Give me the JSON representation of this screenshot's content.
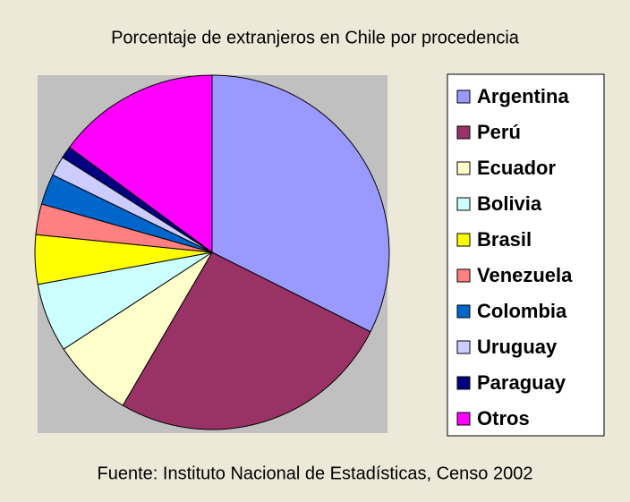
{
  "chart_data": {
    "type": "pie",
    "title": "Porcentaje de extranjeros en Chile por procedencia",
    "source": "Fuente: Instituto Nacional de Estadísticas, Censo 2002",
    "categories": [
      "Argentina",
      "Perú",
      "Ecuador",
      "Bolivia",
      "Brasil",
      "Venezuela",
      "Colombia",
      "Uruguay",
      "Paraguay",
      "Otros"
    ],
    "values": [
      32.4,
      26,
      7.4,
      6.3,
      4.5,
      2.8,
      2.8,
      1.8,
      1.1,
      14.9
    ],
    "colors": [
      "#9999ff",
      "#993366",
      "#ffffcc",
      "#ccffff",
      "#ffff00",
      "#ff8080",
      "#0066cc",
      "#ccccff",
      "#000080",
      "#ff00ff"
    ],
    "legend": "right"
  }
}
